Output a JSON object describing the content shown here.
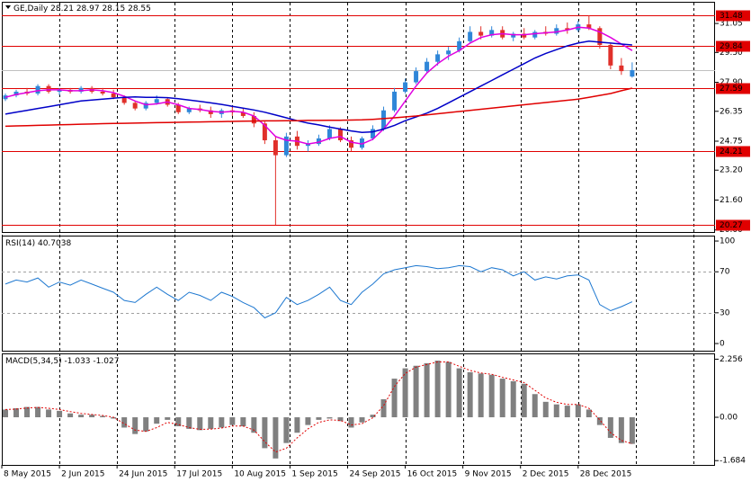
{
  "chart_data": [
    {
      "type": "candlestick",
      "title": "GE,Daily",
      "x": [
        1,
        4,
        7,
        10,
        13,
        16,
        19,
        22,
        25,
        28,
        31,
        34,
        37,
        40,
        43,
        46,
        49,
        52,
        55,
        58,
        61,
        64,
        67,
        70,
        73,
        76,
        79,
        82,
        85,
        88,
        91,
        94,
        97,
        100,
        103,
        106,
        109,
        112,
        115,
        118,
        121,
        124,
        127,
        130,
        133,
        136,
        139,
        142,
        145,
        148,
        151,
        154,
        157,
        160,
        163,
        166,
        169,
        172,
        175
      ],
      "open": [
        27.0,
        27.2,
        27.4,
        27.3,
        27.7,
        27.4,
        27.5,
        27.4,
        27.6,
        27.4,
        27.3,
        27.1,
        26.8,
        26.5,
        26.8,
        27.0,
        26.7,
        26.3,
        26.5,
        26.4,
        26.2,
        26.4,
        26.3,
        26.1,
        25.7,
        24.8,
        24.0,
        25.0,
        24.5,
        24.6,
        24.9,
        25.4,
        24.8,
        24.4,
        24.9,
        25.4,
        26.4,
        27.4,
        27.9,
        28.5,
        29.0,
        29.4,
        29.6,
        30.1,
        30.6,
        30.4,
        30.7,
        30.3,
        30.5,
        30.3,
        30.6,
        30.5,
        30.8,
        30.7,
        31.0,
        30.8,
        29.9,
        28.8,
        28.21
      ],
      "high": [
        27.3,
        27.5,
        27.6,
        27.8,
        27.8,
        27.6,
        27.6,
        27.7,
        27.7,
        27.6,
        27.5,
        27.2,
        26.9,
        26.9,
        27.2,
        27.1,
        26.8,
        26.6,
        26.7,
        26.6,
        26.5,
        26.6,
        26.5,
        26.3,
        25.8,
        25.0,
        25.2,
        25.3,
        24.8,
        25.1,
        25.6,
        25.5,
        25.0,
        25.0,
        25.6,
        26.6,
        27.6,
        28.1,
        28.7,
        29.2,
        29.6,
        29.8,
        30.3,
        30.9,
        30.9,
        30.9,
        30.9,
        30.6,
        30.8,
        30.7,
        30.9,
        31.0,
        31.1,
        31.2,
        31.48,
        30.9,
        30.0,
        29.2,
        28.97
      ],
      "low": [
        26.9,
        27.1,
        27.2,
        27.2,
        27.3,
        27.2,
        27.3,
        27.3,
        27.3,
        27.2,
        27.0,
        26.7,
        26.4,
        26.4,
        26.7,
        26.6,
        26.2,
        26.2,
        26.3,
        26.0,
        26.0,
        26.1,
        26.0,
        25.5,
        24.6,
        20.27,
        23.9,
        24.3,
        24.2,
        24.5,
        24.8,
        24.7,
        24.2,
        24.3,
        24.8,
        25.3,
        26.3,
        27.3,
        27.8,
        28.4,
        28.8,
        29.1,
        29.5,
        30.0,
        30.2,
        30.3,
        30.2,
        30.1,
        30.2,
        30.2,
        30.4,
        30.4,
        30.5,
        30.6,
        30.7,
        29.7,
        28.6,
        28.3,
        28.15
      ],
      "close": [
        27.2,
        27.4,
        27.3,
        27.7,
        27.4,
        27.5,
        27.4,
        27.6,
        27.4,
        27.3,
        27.1,
        26.8,
        26.5,
        26.8,
        27.0,
        26.7,
        26.3,
        26.5,
        26.4,
        26.2,
        26.4,
        26.3,
        26.1,
        25.7,
        24.8,
        24.0,
        25.0,
        24.5,
        24.6,
        24.9,
        25.4,
        24.8,
        24.4,
        24.9,
        25.4,
        26.4,
        27.4,
        27.9,
        28.5,
        29.0,
        29.4,
        29.6,
        30.1,
        30.6,
        30.4,
        30.7,
        30.3,
        30.5,
        30.3,
        30.6,
        30.5,
        30.8,
        30.7,
        31.0,
        30.8,
        29.9,
        28.8,
        28.5,
        28.55
      ],
      "up_color": "#2f86d8",
      "down_color": "#e0302a",
      "overlays": [
        {
          "color": "#e000e0",
          "values": [
            27.1,
            27.25,
            27.35,
            27.45,
            27.5,
            27.5,
            27.45,
            27.45,
            27.5,
            27.45,
            27.35,
            27.15,
            26.9,
            26.7,
            26.75,
            26.85,
            26.7,
            26.5,
            26.45,
            26.35,
            26.3,
            26.35,
            26.3,
            26.1,
            25.6,
            25.0,
            24.8,
            24.75,
            24.6,
            24.7,
            24.9,
            25.0,
            24.7,
            24.6,
            24.85,
            25.4,
            26.1,
            26.9,
            27.7,
            28.4,
            28.9,
            29.3,
            29.6,
            30.0,
            30.3,
            30.45,
            30.5,
            30.45,
            30.45,
            30.5,
            30.55,
            30.6,
            30.7,
            30.85,
            30.8,
            30.6,
            30.3,
            29.95,
            29.6
          ]
        },
        {
          "color": "#0000c8",
          "values": [
            26.2,
            26.3,
            26.4,
            26.5,
            26.6,
            26.7,
            26.8,
            26.9,
            26.95,
            27.0,
            27.05,
            27.1,
            27.12,
            27.1,
            27.1,
            27.08,
            27.02,
            26.95,
            26.88,
            26.8,
            26.72,
            26.62,
            26.52,
            26.42,
            26.3,
            26.15,
            26.0,
            25.85,
            25.72,
            25.62,
            25.5,
            25.4,
            25.3,
            25.22,
            25.25,
            25.4,
            25.6,
            25.85,
            26.05,
            26.25,
            26.5,
            26.8,
            27.1,
            27.4,
            27.7,
            28.0,
            28.3,
            28.6,
            28.9,
            29.2,
            29.45,
            29.65,
            29.85,
            30.0,
            30.1,
            30.05,
            30.0,
            29.95,
            29.9
          ]
        },
        {
          "color": "#e00000",
          "values": [
            25.55,
            25.57,
            25.58,
            25.6,
            25.61,
            25.63,
            25.64,
            25.66,
            25.67,
            25.69,
            25.7,
            25.71,
            25.72,
            25.73,
            25.74,
            25.75,
            25.76,
            25.77,
            25.78,
            25.79,
            25.8,
            25.81,
            25.82,
            25.83,
            25.84,
            25.84,
            25.85,
            25.85,
            25.86,
            25.86,
            25.87,
            25.87,
            25.88,
            25.89,
            25.92,
            25.96,
            26.0,
            26.05,
            26.1,
            26.16,
            26.22,
            26.28,
            26.34,
            26.4,
            26.46,
            26.52,
            26.58,
            26.64,
            26.7,
            26.76,
            26.82,
            26.88,
            26.94,
            27.0,
            27.1,
            27.2,
            27.3,
            27.45,
            27.59
          ]
        }
      ],
      "levels": {
        "color": "#e00000",
        "values": [
          31.48,
          29.84,
          27.59,
          24.21,
          20.27
        ]
      },
      "xlim": [
        0,
        198
      ],
      "ylim": [
        19.89,
        32.21
      ],
      "yticks": [
        31.05,
        {
          "value": 29.5,
          "label": "29.50"
        },
        {
          "value": 27.9,
          "label": "27.90"
        },
        26.35,
        24.75,
        {
          "value": 23.2,
          "label": "23.20"
        },
        {
          "value": 21.6,
          "label": "21.60"
        },
        {
          "value": 20,
          "label": "20.00"
        }
      ],
      "xgrid": [
        0,
        16,
        32,
        48,
        64,
        80,
        96,
        112,
        128,
        144,
        160,
        176,
        192
      ]
    },
    {
      "type": "line",
      "title": "RSI(14)",
      "color": "#1e78d0",
      "values": [
        58,
        62,
        60,
        64,
        55,
        60,
        57,
        62,
        58,
        54,
        50,
        42,
        40,
        48,
        55,
        48,
        42,
        50,
        47,
        42,
        50,
        46,
        40,
        35,
        25,
        30,
        45,
        38,
        42,
        48,
        55,
        42,
        38,
        50,
        58,
        68,
        72,
        74,
        76,
        75,
        73,
        74,
        76,
        75,
        70,
        74,
        72,
        66,
        70,
        62,
        65,
        63,
        66,
        67,
        62,
        38,
        32,
        36,
        40.7038
      ],
      "ylim": [
        -7,
        105.3
      ],
      "yticks": [
        0,
        30,
        70,
        100
      ],
      "levels": [
        30,
        70
      ]
    },
    {
      "type": "macd",
      "title": "MACD(5,34,5)",
      "color": "#808080",
      "signal_color": "#e00000",
      "values": [
        0.3,
        0.35,
        0.4,
        0.4,
        0.3,
        0.25,
        0.15,
        0.1,
        0.1,
        0.05,
        -0.05,
        -0.4,
        -0.65,
        -0.55,
        -0.25,
        -0.1,
        -0.35,
        -0.45,
        -0.5,
        -0.45,
        -0.4,
        -0.3,
        -0.35,
        -0.6,
        -1.2,
        -1.6,
        -1.0,
        -0.6,
        -0.3,
        -0.1,
        -0.05,
        -0.15,
        -0.4,
        -0.2,
        0.1,
        0.7,
        1.5,
        1.9,
        2.0,
        2.1,
        2.2,
        2.15,
        1.9,
        1.75,
        1.7,
        1.65,
        1.5,
        1.4,
        1.3,
        0.9,
        0.6,
        0.5,
        0.45,
        0.5,
        0.3,
        -0.3,
        -0.8,
        -1.0,
        -1.033
      ],
      "signal": [
        0.3,
        0.32,
        0.36,
        0.38,
        0.35,
        0.3,
        0.22,
        0.15,
        0.11,
        0.07,
        0.0,
        -0.25,
        -0.5,
        -0.55,
        -0.4,
        -0.2,
        -0.28,
        -0.4,
        -0.47,
        -0.46,
        -0.42,
        -0.34,
        -0.34,
        -0.5,
        -0.95,
        -1.35,
        -1.2,
        -0.8,
        -0.45,
        -0.2,
        -0.1,
        -0.12,
        -0.3,
        -0.25,
        -0.02,
        0.45,
        1.2,
        1.7,
        1.95,
        2.05,
        2.15,
        2.15,
        1.98,
        1.82,
        1.72,
        1.67,
        1.55,
        1.45,
        1.35,
        1.05,
        0.75,
        0.58,
        0.5,
        0.5,
        0.35,
        -0.1,
        -0.6,
        -0.9,
        -1.027
      ],
      "ylim": [
        -1.85,
        2.48
      ],
      "yticks": [
        -1.684,
        {
          "value": 0,
          "label": "0.00"
        },
        2.256
      ],
      "xticks": [
        {
          "value": 0,
          "label": "8 May 2015"
        },
        {
          "value": 16,
          "label": "2 Jun 2015"
        },
        {
          "value": 32,
          "label": "24 Jun 2015"
        },
        {
          "value": 48,
          "label": "17 Jul 2015"
        },
        {
          "value": 64,
          "label": "10 Aug 2015"
        },
        {
          "value": 80,
          "label": "1 Sep 2015"
        },
        {
          "value": 96,
          "label": "24 Sep 2015"
        },
        {
          "value": 112,
          "label": "16 Oct 2015"
        },
        {
          "value": 128,
          "label": "9 Nov 2015"
        },
        {
          "value": 144,
          "label": "2 Dec 2015"
        },
        {
          "value": 160,
          "label": "28 Dec 2015"
        }
      ]
    }
  ]
}
